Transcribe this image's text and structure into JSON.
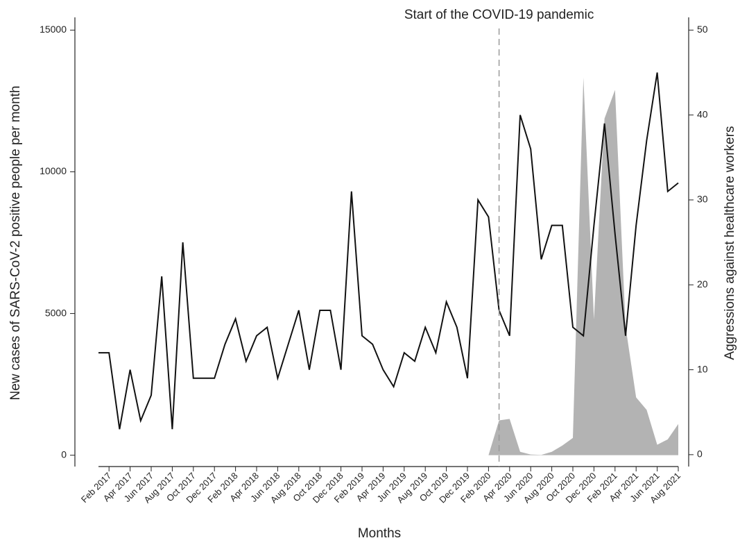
{
  "chart_data": {
    "type": "line",
    "x_label": "Months",
    "y_label": "New cases of SARS-CoV-2 positive people per month",
    "y2_label": "Aggressions against healthcare workers",
    "annotation": {
      "text": "Start of the COVID-19 pandemic",
      "at": 38
    },
    "categories": [
      null,
      "Feb 2017",
      null,
      "Apr 2017",
      null,
      "Jun 2017",
      null,
      "Aug 2017",
      null,
      "Oct 2017",
      null,
      "Dec 2017",
      null,
      "Feb 2018",
      null,
      "Apr 2018",
      null,
      "Jun 2018",
      null,
      "Aug 2018",
      null,
      "Oct 2018",
      null,
      "Dec 2018",
      null,
      "Feb 2019",
      null,
      "Apr 2019",
      null,
      "Jun 2019",
      null,
      "Aug 2019",
      null,
      "Oct 2019",
      null,
      "Dec 2019",
      null,
      "Feb 2020",
      null,
      "Apr 2020",
      null,
      "Jun 2020",
      null,
      "Aug 2020",
      null,
      "Oct 2020",
      null,
      "Dec 2020",
      null,
      "Feb 2021",
      null,
      "Apr 2021",
      null,
      "Jun 2021",
      null,
      "Aug 2021"
    ],
    "ylim": [
      -400,
      15450
    ],
    "yticks": [
      0,
      5000,
      10000,
      15000
    ],
    "y2lim": [
      -1.4,
      51.5
    ],
    "y2ticks": [
      0,
      10,
      20,
      30,
      40,
      50
    ],
    "series": [
      {
        "style": "area",
        "color": "#b3b3b3",
        "axis": "y",
        "values": [
          null,
          null,
          null,
          null,
          null,
          null,
          null,
          null,
          null,
          null,
          null,
          null,
          null,
          null,
          null,
          null,
          null,
          null,
          null,
          null,
          null,
          null,
          null,
          null,
          null,
          null,
          null,
          null,
          null,
          null,
          null,
          null,
          null,
          null,
          null,
          null,
          null,
          0,
          1230,
          1280,
          120,
          25,
          10,
          120,
          340,
          610,
          13330,
          4790,
          11880,
          12890,
          4540,
          2040,
          1600,
          370,
          560,
          1100
        ]
      },
      {
        "style": "line",
        "color": "#111111",
        "axis": "y2",
        "values": [
          12,
          12,
          3,
          10,
          4,
          7,
          21,
          3,
          25,
          9,
          9,
          9,
          13,
          16,
          11,
          14,
          15,
          9,
          13,
          17,
          10,
          17,
          17,
          10,
          31,
          14,
          13,
          10,
          8,
          12,
          11,
          15,
          12,
          18,
          15,
          9,
          30,
          28,
          17,
          14,
          40,
          36,
          23,
          27,
          27,
          15,
          14,
          27,
          39,
          26,
          14,
          27,
          37,
          45,
          31,
          32
        ]
      }
    ]
  }
}
